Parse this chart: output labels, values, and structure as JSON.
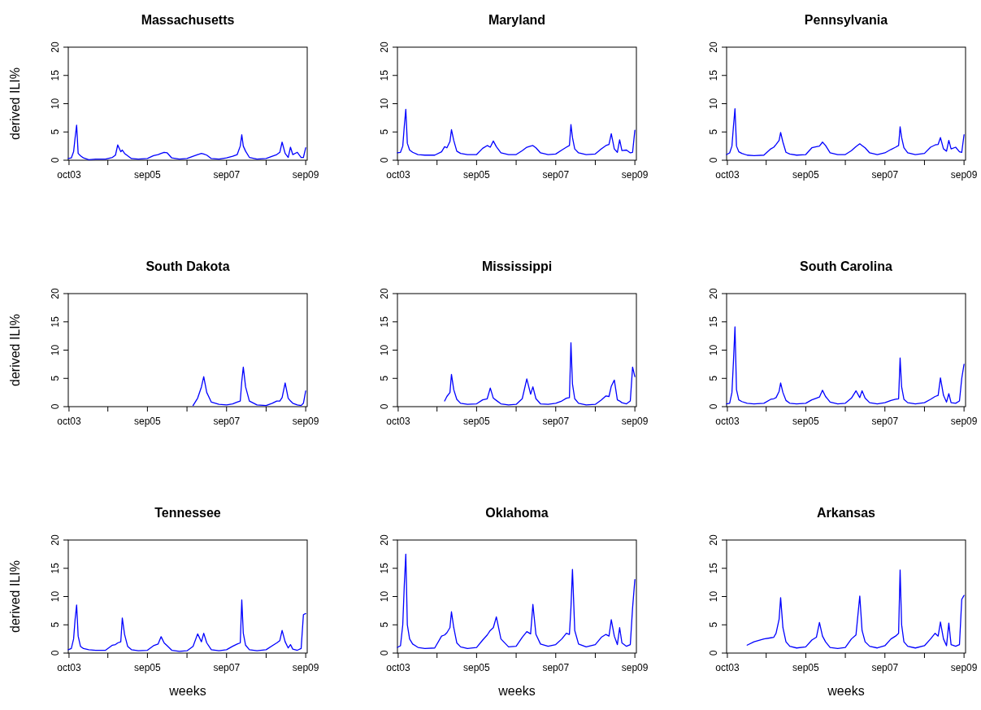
{
  "chart_data": [
    {
      "type": "line",
      "title": "Massachusetts",
      "ylabel": "derived ILI%",
      "x": [
        "2003-09-28",
        "2003-10-26",
        "2003-11-16",
        "2003-11-30",
        "2003-12-14",
        "2003-12-28",
        "2004-01-18",
        "2004-02-15",
        "2004-04-04",
        "2004-06-06",
        "2004-09-05",
        "2004-11-07",
        "2004-12-05",
        "2004-12-26",
        "2005-01-23",
        "2005-02-06",
        "2005-02-27",
        "2005-03-27",
        "2005-05-01",
        "2005-07-03",
        "2005-09-25",
        "2005-11-20",
        "2006-01-01",
        "2006-01-29",
        "2006-02-26",
        "2006-03-26",
        "2006-05-07",
        "2006-07-16",
        "2006-09-24",
        "2006-11-19",
        "2006-12-31",
        "2007-02-04",
        "2007-02-25",
        "2007-03-25",
        "2007-05-06",
        "2007-07-15",
        "2007-09-23",
        "2007-11-18",
        "2007-12-30",
        "2008-01-27",
        "2008-02-10",
        "2008-02-24",
        "2008-03-16",
        "2008-04-20",
        "2008-06-29",
        "2008-09-21",
        "2008-11-16",
        "2008-12-28",
        "2009-01-25",
        "2009-02-15",
        "2009-03-15",
        "2009-04-12",
        "2009-05-03",
        "2009-05-24",
        "2009-07-05",
        "2009-08-09",
        "2009-08-30",
        "2009-09-20"
      ],
      "xlim": [
        "2003-09-28",
        "2009-10-04"
      ],
      "xticks": [
        {
          "value": "2003-10-05",
          "label": "oct03"
        },
        {
          "value": "2004-09-26",
          "label": null
        },
        {
          "value": "2005-09-25",
          "label": "sep05"
        },
        {
          "value": "2006-09-24",
          "label": null
        },
        {
          "value": "2007-09-23",
          "label": "sep07"
        },
        {
          "value": "2008-09-21",
          "label": null
        },
        {
          "value": "2009-09-20",
          "label": "sep09"
        }
      ],
      "ylim": [
        0,
        20
      ],
      "yticks": [
        0,
        5,
        10,
        15,
        20
      ],
      "series": [
        {
          "color": "#0000ff",
          "values": [
            0.3,
            0.4,
            1.5,
            4,
            6.2,
            1.2,
            0.8,
            0.4,
            0.1,
            0.2,
            0.2,
            0.5,
            0.9,
            2.7,
            1.5,
            1.8,
            1.2,
            0.8,
            0.3,
            0.2,
            0.3,
            0.8,
            1.0,
            1.2,
            1.4,
            1.3,
            0.4,
            0.2,
            0.3,
            0.7,
            1.0,
            1.2,
            1.1,
            0.9,
            0.3,
            0.2,
            0.4,
            0.7,
            1.0,
            2.5,
            4.5,
            2.5,
            1.6,
            0.5,
            0.2,
            0.3,
            0.7,
            1.0,
            1.4,
            3.2,
            1.2,
            0.5,
            2.3,
            1.0,
            1.4,
            0.5,
            0.5,
            2.2
          ]
        }
      ]
    },
    {
      "type": "line",
      "title": "Maryland",
      "x": [
        "2003-09-28",
        "2003-10-26",
        "2003-11-16",
        "2003-11-30",
        "2003-12-14",
        "2003-12-28",
        "2004-01-18",
        "2004-02-15",
        "2004-04-04",
        "2004-06-06",
        "2004-09-05",
        "2004-11-07",
        "2004-12-05",
        "2004-12-26",
        "2005-01-23",
        "2005-02-06",
        "2005-02-27",
        "2005-03-27",
        "2005-05-01",
        "2005-07-03",
        "2005-09-25",
        "2005-11-20",
        "2006-01-01",
        "2006-01-29",
        "2006-02-26",
        "2006-03-26",
        "2006-05-07",
        "2006-07-16",
        "2006-09-24",
        "2006-11-19",
        "2006-12-31",
        "2007-02-04",
        "2007-02-25",
        "2007-03-25",
        "2007-05-06",
        "2007-07-15",
        "2007-09-23",
        "2007-11-18",
        "2007-12-30",
        "2008-01-27",
        "2008-02-10",
        "2008-02-24",
        "2008-03-16",
        "2008-04-20",
        "2008-06-29",
        "2008-09-21",
        "2008-11-16",
        "2008-12-28",
        "2009-01-25",
        "2009-02-15",
        "2009-03-15",
        "2009-04-12",
        "2009-05-03",
        "2009-05-24",
        "2009-07-05",
        "2009-08-09",
        "2009-08-30",
        "2009-09-20"
      ],
      "xlim": [
        "2003-09-28",
        "2009-10-04"
      ],
      "xticks": [
        {
          "value": "2003-10-05",
          "label": "oct03"
        },
        {
          "value": "2004-09-26",
          "label": null
        },
        {
          "value": "2005-09-25",
          "label": "sep05"
        },
        {
          "value": "2006-09-24",
          "label": null
        },
        {
          "value": "2007-09-23",
          "label": "sep07"
        },
        {
          "value": "2008-09-21",
          "label": null
        },
        {
          "value": "2009-09-20",
          "label": "sep09"
        }
      ],
      "ylim": [
        0,
        20
      ],
      "yticks": [
        0,
        5,
        10,
        15,
        20
      ],
      "series": [
        {
          "color": "#0000ff",
          "values": [
            1.3,
            1.4,
            2.5,
            6,
            9,
            3,
            1.8,
            1.4,
            1.0,
            0.9,
            0.9,
            1.5,
            2.4,
            2.2,
            3.3,
            5.4,
            3.5,
            1.6,
            1.2,
            1.0,
            1.0,
            2.1,
            2.6,
            2.3,
            3.4,
            2.4,
            1.3,
            1.0,
            1.0,
            1.7,
            2.3,
            2.5,
            2.6,
            2.2,
            1.3,
            1.0,
            1.1,
            1.8,
            2.3,
            2.6,
            6.3,
            4.0,
            2.0,
            1.3,
            1.0,
            1.1,
            2.0,
            2.6,
            2.8,
            4.7,
            2.0,
            1.4,
            3.6,
            1.7,
            1.8,
            1.3,
            1.4,
            5.3
          ]
        }
      ]
    },
    {
      "type": "line",
      "title": "Pennsylvania",
      "x": [
        "2003-09-28",
        "2003-10-26",
        "2003-11-16",
        "2003-11-30",
        "2003-12-14",
        "2003-12-28",
        "2004-01-18",
        "2004-02-15",
        "2004-04-04",
        "2004-06-06",
        "2004-09-05",
        "2004-11-07",
        "2004-12-05",
        "2004-12-26",
        "2005-01-23",
        "2005-02-06",
        "2005-02-27",
        "2005-03-27",
        "2005-05-01",
        "2005-07-03",
        "2005-09-25",
        "2005-11-20",
        "2006-01-01",
        "2006-01-29",
        "2006-02-26",
        "2006-03-26",
        "2006-05-07",
        "2006-07-16",
        "2006-09-24",
        "2006-11-19",
        "2006-12-31",
        "2007-02-04",
        "2007-02-25",
        "2007-03-25",
        "2007-05-06",
        "2007-07-15",
        "2007-09-23",
        "2007-11-18",
        "2007-12-30",
        "2008-01-27",
        "2008-02-10",
        "2008-02-24",
        "2008-03-16",
        "2008-04-20",
        "2008-06-29",
        "2008-09-21",
        "2008-11-16",
        "2008-12-28",
        "2009-01-25",
        "2009-02-15",
        "2009-03-15",
        "2009-04-12",
        "2009-05-03",
        "2009-05-24",
        "2009-07-05",
        "2009-08-09",
        "2009-08-30",
        "2009-09-20"
      ],
      "xlim": [
        "2003-09-28",
        "2009-10-04"
      ],
      "xticks": [
        {
          "value": "2003-10-05",
          "label": "oct03"
        },
        {
          "value": "2004-09-26",
          "label": null
        },
        {
          "value": "2005-09-25",
          "label": "sep05"
        },
        {
          "value": "2006-09-24",
          "label": null
        },
        {
          "value": "2007-09-23",
          "label": "sep07"
        },
        {
          "value": "2008-09-21",
          "label": null
        },
        {
          "value": "2009-09-20",
          "label": "sep09"
        }
      ],
      "ylim": [
        0,
        20
      ],
      "yticks": [
        0,
        5,
        10,
        15,
        20
      ],
      "series": [
        {
          "color": "#0000ff",
          "values": [
            1.0,
            1.3,
            2.5,
            6,
            9.1,
            2.5,
            1.5,
            1.2,
            0.9,
            0.8,
            0.9,
            2.0,
            2.3,
            2.8,
            3.5,
            4.9,
            3.2,
            1.4,
            1.1,
            0.9,
            1.0,
            2.2,
            2.4,
            2.5,
            3.2,
            2.6,
            1.3,
            1.0,
            1.0,
            1.7,
            2.4,
            2.9,
            2.6,
            2.2,
            1.3,
            1.0,
            1.3,
            1.9,
            2.3,
            2.6,
            5.9,
            4.0,
            2.2,
            1.3,
            1.0,
            1.2,
            2.3,
            2.7,
            2.8,
            4.0,
            2.0,
            1.6,
            3.5,
            2.0,
            2.3,
            1.5,
            1.4,
            4.5
          ]
        }
      ]
    },
    {
      "type": "line",
      "title": "South Dakota",
      "ylabel": "derived ILI%",
      "x": [
        "2006-11-19",
        "2006-12-31",
        "2007-02-04",
        "2007-02-25",
        "2007-03-25",
        "2007-05-06",
        "2007-07-15",
        "2007-09-23",
        "2007-11-18",
        "2007-12-30",
        "2008-01-27",
        "2008-02-10",
        "2008-02-24",
        "2008-03-16",
        "2008-04-20",
        "2008-06-29",
        "2008-09-21",
        "2008-11-16",
        "2008-12-28",
        "2009-01-25",
        "2009-02-15",
        "2009-03-15",
        "2009-04-12",
        "2009-05-03",
        "2009-05-24",
        "2009-07-05",
        "2009-08-09",
        "2009-08-30",
        "2009-09-20"
      ],
      "xlim": [
        "2003-09-28",
        "2009-10-04"
      ],
      "xticks": [
        {
          "value": "2003-10-05",
          "label": "oct03"
        },
        {
          "value": "2004-09-26",
          "label": null
        },
        {
          "value": "2005-09-25",
          "label": "sep05"
        },
        {
          "value": "2006-09-24",
          "label": null
        },
        {
          "value": "2007-09-23",
          "label": "sep07"
        },
        {
          "value": "2008-09-21",
          "label": null
        },
        {
          "value": "2009-09-20",
          "label": "sep09"
        }
      ],
      "ylim": [
        0,
        20
      ],
      "yticks": [
        0,
        5,
        10,
        15,
        20
      ],
      "series": [
        {
          "color": "#0000ff",
          "values": [
            0.2,
            1.5,
            3.5,
            5.3,
            2.5,
            0.8,
            0.4,
            0.3,
            0.5,
            0.8,
            1.0,
            4.5,
            7.0,
            3.5,
            1.0,
            0.3,
            0.2,
            0.6,
            1.0,
            1.0,
            1.6,
            4.2,
            1.5,
            1.0,
            0.6,
            0.3,
            0.2,
            0.6,
            2.8
          ]
        }
      ]
    },
    {
      "type": "line",
      "title": "Mississippi",
      "x": [
        "2004-12-05",
        "2004-12-26",
        "2005-01-23",
        "2005-02-06",
        "2005-02-27",
        "2005-03-27",
        "2005-05-01",
        "2005-07-03",
        "2005-09-25",
        "2005-11-20",
        "2006-01-01",
        "2006-01-29",
        "2006-02-26",
        "2006-03-26",
        "2006-05-07",
        "2006-07-16",
        "2006-09-24",
        "2006-11-19",
        "2006-12-31",
        "2007-02-04",
        "2007-02-25",
        "2007-03-25",
        "2007-05-06",
        "2007-07-15",
        "2007-09-23",
        "2007-11-18",
        "2007-12-30",
        "2008-01-27",
        "2008-02-10",
        "2008-02-24",
        "2008-03-16",
        "2008-04-20",
        "2008-06-29",
        "2008-09-21",
        "2008-11-16",
        "2008-12-28",
        "2009-01-25",
        "2009-02-15",
        "2009-03-15",
        "2009-04-12",
        "2009-05-03",
        "2009-05-24",
        "2009-07-05",
        "2009-08-09",
        "2009-08-30",
        "2009-09-20"
      ],
      "xlim": [
        "2003-09-28",
        "2009-10-04"
      ],
      "xticks": [
        {
          "value": "2003-10-05",
          "label": "oct03"
        },
        {
          "value": "2004-09-26",
          "label": null
        },
        {
          "value": "2005-09-25",
          "label": "sep05"
        },
        {
          "value": "2006-09-24",
          "label": null
        },
        {
          "value": "2007-09-23",
          "label": "sep07"
        },
        {
          "value": "2008-09-21",
          "label": null
        },
        {
          "value": "2009-09-20",
          "label": "sep09"
        }
      ],
      "ylim": [
        0,
        20
      ],
      "yticks": [
        0,
        5,
        10,
        15,
        20
      ],
      "series": [
        {
          "color": "#0000ff",
          "values": [
            1.0,
            1.8,
            2.5,
            5.7,
            3.0,
            1.3,
            0.6,
            0.4,
            0.5,
            1.2,
            1.4,
            3.3,
            1.5,
            1.1,
            0.5,
            0.3,
            0.4,
            1.4,
            4.9,
            2.2,
            3.5,
            1.4,
            0.5,
            0.4,
            0.6,
            1.0,
            1.5,
            1.6,
            11.3,
            4.0,
            1.4,
            0.6,
            0.3,
            0.4,
            1.2,
            1.9,
            1.8,
            3.6,
            4.7,
            1.2,
            1.0,
            0.7,
            0.5,
            1.0,
            7.0,
            5.3
          ]
        }
      ]
    },
    {
      "type": "line",
      "title": "South Carolina",
      "x": [
        "2003-09-28",
        "2003-10-26",
        "2003-11-16",
        "2003-11-30",
        "2003-12-14",
        "2003-12-28",
        "2004-01-18",
        "2004-02-15",
        "2004-04-04",
        "2004-06-06",
        "2004-09-05",
        "2004-11-07",
        "2004-12-05",
        "2004-12-26",
        "2005-01-23",
        "2005-02-06",
        "2005-02-27",
        "2005-03-27",
        "2005-05-01",
        "2005-07-03",
        "2005-09-25",
        "2005-11-20",
        "2006-01-01",
        "2006-01-29",
        "2006-02-26",
        "2006-03-26",
        "2006-05-07",
        "2006-07-16",
        "2006-09-24",
        "2006-11-19",
        "2006-12-31",
        "2007-02-04",
        "2007-02-25",
        "2007-03-25",
        "2007-05-06",
        "2007-07-15",
        "2007-09-23",
        "2007-11-18",
        "2007-12-30",
        "2008-01-27",
        "2008-02-10",
        "2008-02-24",
        "2008-03-16",
        "2008-04-20",
        "2008-06-29",
        "2008-09-21",
        "2008-11-16",
        "2008-12-28",
        "2009-01-25",
        "2009-02-15",
        "2009-03-15",
        "2009-04-12",
        "2009-05-03",
        "2009-05-24",
        "2009-07-05",
        "2009-08-09",
        "2009-08-30",
        "2009-09-20"
      ],
      "xlim": [
        "2003-09-28",
        "2009-10-04"
      ],
      "xticks": [
        {
          "value": "2003-10-05",
          "label": "oct03"
        },
        {
          "value": "2004-09-26",
          "label": null
        },
        {
          "value": "2005-09-25",
          "label": "sep05"
        },
        {
          "value": "2006-09-24",
          "label": null
        },
        {
          "value": "2007-09-23",
          "label": "sep07"
        },
        {
          "value": "2008-09-21",
          "label": null
        },
        {
          "value": "2009-09-20",
          "label": "sep09"
        }
      ],
      "ylim": [
        0,
        20
      ],
      "yticks": [
        0,
        5,
        10,
        15,
        20
      ],
      "series": [
        {
          "color": "#0000ff",
          "values": [
            0.5,
            0.6,
            2.5,
            8,
            14.1,
            3,
            1.2,
            0.9,
            0.6,
            0.5,
            0.6,
            1.3,
            1.4,
            1.6,
            2.7,
            4.2,
            2.5,
            1.1,
            0.6,
            0.5,
            0.6,
            1.2,
            1.5,
            1.7,
            2.9,
            1.8,
            0.8,
            0.5,
            0.6,
            1.5,
            2.8,
            1.6,
            2.8,
            1.5,
            0.7,
            0.5,
            0.7,
            1.1,
            1.3,
            1.4,
            8.6,
            3.5,
            1.3,
            0.7,
            0.5,
            0.7,
            1.3,
            1.8,
            2.0,
            5.1,
            2.0,
            0.8,
            2.3,
            0.7,
            0.6,
            1.0,
            5.0,
            7.5
          ]
        }
      ]
    },
    {
      "type": "line",
      "title": "Tennessee",
      "ylabel": "derived ILI%",
      "xlabel": "weeks",
      "x": [
        "2003-09-28",
        "2003-10-26",
        "2003-11-16",
        "2003-11-30",
        "2003-12-14",
        "2003-12-28",
        "2004-01-18",
        "2004-02-15",
        "2004-04-04",
        "2004-06-06",
        "2004-09-05",
        "2004-11-07",
        "2004-12-05",
        "2004-12-26",
        "2005-01-23",
        "2005-02-06",
        "2005-02-27",
        "2005-03-27",
        "2005-05-01",
        "2005-07-03",
        "2005-09-25",
        "2005-11-20",
        "2006-01-01",
        "2006-01-29",
        "2006-02-26",
        "2006-03-26",
        "2006-05-07",
        "2006-07-16",
        "2006-09-24",
        "2006-11-19",
        "2006-12-31",
        "2007-02-04",
        "2007-02-25",
        "2007-03-25",
        "2007-05-06",
        "2007-07-15",
        "2007-09-23",
        "2007-11-18",
        "2007-12-30",
        "2008-01-27",
        "2008-02-10",
        "2008-02-24",
        "2008-03-16",
        "2008-04-20",
        "2008-06-29",
        "2008-09-21",
        "2008-11-16",
        "2008-12-28",
        "2009-01-25",
        "2009-02-15",
        "2009-03-15",
        "2009-04-12",
        "2009-05-03",
        "2009-05-24",
        "2009-07-05",
        "2009-08-09",
        "2009-08-30",
        "2009-09-20"
      ],
      "xlim": [
        "2003-09-28",
        "2009-10-04"
      ],
      "xticks": [
        {
          "value": "2003-10-05",
          "label": "oct03"
        },
        {
          "value": "2004-09-26",
          "label": null
        },
        {
          "value": "2005-09-25",
          "label": "sep05"
        },
        {
          "value": "2006-09-24",
          "label": null
        },
        {
          "value": "2007-09-23",
          "label": "sep07"
        },
        {
          "value": "2008-09-21",
          "label": null
        },
        {
          "value": "2009-09-20",
          "label": "sep09"
        }
      ],
      "ylim": [
        0,
        20
      ],
      "yticks": [
        0,
        5,
        10,
        15,
        20
      ],
      "series": [
        {
          "color": "#0000ff",
          "values": [
            0.6,
            0.8,
            2.5,
            6,
            8.5,
            3,
            1.2,
            0.8,
            0.6,
            0.5,
            0.5,
            1.4,
            1.5,
            1.8,
            2.0,
            6.2,
            3.3,
            1.2,
            0.6,
            0.4,
            0.5,
            1.3,
            1.6,
            2.9,
            1.8,
            1.3,
            0.5,
            0.3,
            0.4,
            1.2,
            3.4,
            2.0,
            3.5,
            1.8,
            0.6,
            0.4,
            0.6,
            1.2,
            1.6,
            1.8,
            9.4,
            3.5,
            1.4,
            0.6,
            0.4,
            0.6,
            1.3,
            1.8,
            2.2,
            4.0,
            2.0,
            0.9,
            1.5,
            0.7,
            0.5,
            0.8,
            6.8,
            7.0
          ]
        }
      ]
    },
    {
      "type": "line",
      "title": "Oklahoma",
      "xlabel": "weeks",
      "x": [
        "2003-09-28",
        "2003-10-26",
        "2003-11-16",
        "2003-11-30",
        "2003-12-14",
        "2003-12-28",
        "2004-01-18",
        "2004-02-15",
        "2004-04-04",
        "2004-06-06",
        "2004-09-05",
        "2004-11-07",
        "2004-12-05",
        "2004-12-26",
        "2005-01-23",
        "2005-02-06",
        "2005-02-27",
        "2005-03-27",
        "2005-05-01",
        "2005-07-03",
        "2005-09-25",
        "2005-11-20",
        "2006-01-01",
        "2006-01-29",
        "2006-02-26",
        "2006-03-26",
        "2006-05-07",
        "2006-07-16",
        "2006-09-24",
        "2006-11-19",
        "2006-12-31",
        "2007-02-04",
        "2007-02-25",
        "2007-03-25",
        "2007-05-06",
        "2007-07-15",
        "2007-09-23",
        "2007-11-18",
        "2007-12-30",
        "2008-01-27",
        "2008-02-10",
        "2008-02-24",
        "2008-03-16",
        "2008-04-20",
        "2008-06-29",
        "2008-09-21",
        "2008-11-16",
        "2008-12-28",
        "2009-01-25",
        "2009-02-15",
        "2009-03-15",
        "2009-04-12",
        "2009-05-03",
        "2009-05-24",
        "2009-07-05",
        "2009-08-09",
        "2009-08-30",
        "2009-09-20"
      ],
      "xlim": [
        "2003-09-28",
        "2009-10-04"
      ],
      "xticks": [
        {
          "value": "2003-10-05",
          "label": "oct03"
        },
        {
          "value": "2004-09-26",
          "label": null
        },
        {
          "value": "2005-09-25",
          "label": "sep05"
        },
        {
          "value": "2006-09-24",
          "label": null
        },
        {
          "value": "2007-09-23",
          "label": "sep07"
        },
        {
          "value": "2008-09-21",
          "label": null
        },
        {
          "value": "2009-09-20",
          "label": "sep09"
        }
      ],
      "ylim": [
        0,
        20
      ],
      "yticks": [
        0,
        5,
        10,
        15,
        20
      ],
      "series": [
        {
          "color": "#0000ff",
          "values": [
            1.0,
            1.3,
            5,
            12,
            17.5,
            5,
            2.5,
            1.6,
            1.0,
            0.8,
            0.9,
            3.0,
            3.2,
            3.6,
            4.5,
            7.3,
            4.5,
            1.8,
            1.1,
            0.8,
            1.0,
            2.3,
            3.2,
            4.0,
            4.5,
            6.4,
            2.5,
            1.1,
            1.2,
            2.8,
            3.8,
            3.4,
            8.6,
            3.3,
            1.6,
            1.2,
            1.5,
            2.5,
            3.5,
            3.3,
            8.0,
            14.8,
            4.0,
            1.6,
            1.1,
            1.5,
            2.8,
            3.3,
            3.0,
            5.9,
            3.0,
            1.5,
            4.5,
            1.8,
            1.2,
            1.5,
            8.0,
            13.0
          ]
        }
      ]
    },
    {
      "type": "line",
      "title": "Arkansas",
      "xlabel": "weeks",
      "x": [
        "2004-04-04",
        "2004-06-06",
        "2004-09-05",
        "2004-11-07",
        "2004-12-05",
        "2004-12-26",
        "2005-01-23",
        "2005-02-06",
        "2005-02-27",
        "2005-03-27",
        "2005-05-01",
        "2005-07-03",
        "2005-09-25",
        "2005-11-20",
        "2006-01-01",
        "2006-01-29",
        "2006-02-26",
        "2006-03-26",
        "2006-05-07",
        "2006-07-16",
        "2006-09-24",
        "2006-11-19",
        "2006-12-31",
        "2007-02-04",
        "2007-02-25",
        "2007-03-25",
        "2007-05-06",
        "2007-07-15",
        "2007-09-23",
        "2007-11-18",
        "2007-12-30",
        "2008-01-27",
        "2008-02-10",
        "2008-02-24",
        "2008-03-16",
        "2008-04-20",
        "2008-06-29",
        "2008-09-21",
        "2008-11-16",
        "2008-12-28",
        "2009-01-25",
        "2009-02-15",
        "2009-03-15",
        "2009-04-12",
        "2009-05-03",
        "2009-05-24",
        "2009-07-05",
        "2009-08-09",
        "2009-08-30",
        "2009-09-20"
      ],
      "xlim": [
        "2003-09-28",
        "2009-10-04"
      ],
      "xticks": [
        {
          "value": "2003-10-05",
          "label": "oct03"
        },
        {
          "value": "2004-09-26",
          "label": null
        },
        {
          "value": "2005-09-25",
          "label": "sep05"
        },
        {
          "value": "2006-09-24",
          "label": null
        },
        {
          "value": "2007-09-23",
          "label": "sep07"
        },
        {
          "value": "2008-09-21",
          "label": null
        },
        {
          "value": "2009-09-20",
          "label": "sep09"
        }
      ],
      "ylim": [
        0,
        20
      ],
      "yticks": [
        0,
        5,
        10,
        15,
        20
      ],
      "series": [
        {
          "color": "#0000ff",
          "values": [
            1.4,
            2.0,
            2.5,
            2.7,
            2.8,
            3.5,
            6.0,
            9.8,
            4.5,
            2.0,
            1.2,
            0.9,
            1.1,
            2.3,
            2.8,
            5.4,
            3.0,
            2.0,
            1.0,
            0.8,
            1.0,
            2.5,
            3.2,
            10.1,
            4.0,
            2.0,
            1.2,
            0.9,
            1.3,
            2.5,
            3.0,
            3.5,
            14.7,
            5.0,
            2.0,
            1.2,
            0.9,
            1.3,
            2.5,
            3.5,
            3.0,
            5.5,
            2.5,
            1.3,
            5.3,
            1.5,
            1.2,
            1.5,
            9.5,
            10.2
          ]
        }
      ]
    }
  ]
}
